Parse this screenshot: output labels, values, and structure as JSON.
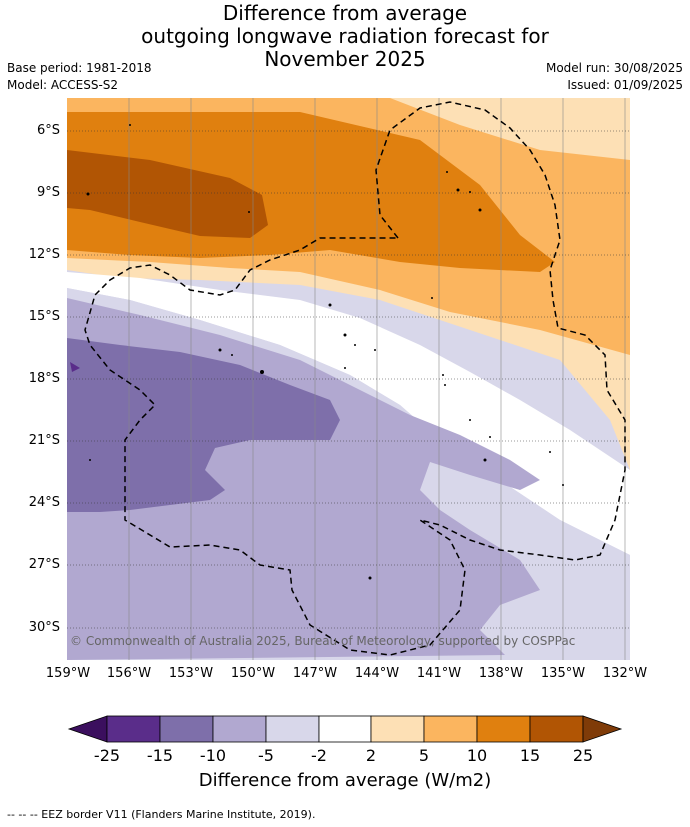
{
  "title": {
    "line1": "Difference from average",
    "line2": "outgoing longwave radiation forecast for",
    "line3": "November 2025"
  },
  "meta": {
    "base_period": "Base period: 1981-2018",
    "model": "Model: ACCESS-S2",
    "model_run": "Model run: 30/08/2025",
    "issued": "Issued: 01/09/2025"
  },
  "map": {
    "lat_labels": [
      "6°S",
      "9°S",
      "12°S",
      "15°S",
      "18°S",
      "21°S",
      "24°S",
      "27°S",
      "30°S"
    ],
    "lon_labels": [
      "159°W",
      "156°W",
      "153°W",
      "150°W",
      "147°W",
      "144°W",
      "141°W",
      "138°W",
      "135°W",
      "132°W"
    ],
    "copyright": "© Commonwealth of Australia 2025, Bureau of Meteorology, supported by COSPPac"
  },
  "colorbar": {
    "ticks": [
      "-25",
      "-15",
      "-10",
      "-5",
      "-2",
      "2",
      "5",
      "10",
      "15",
      "25"
    ],
    "colors": [
      "#5a2d8a",
      "#7e6faa",
      "#b1a8d0",
      "#d8d7ea",
      "#ffffff",
      "#fde0b5",
      "#fbb55f",
      "#e0800f",
      "#b15504"
    ],
    "under_color": "#3b0f5e",
    "over_color": "#7f3b08",
    "label": "Difference from average (W/m2)"
  },
  "footer": "-- -- -- EEZ border V11 (Flanders Marine Institute, 2019)."
}
